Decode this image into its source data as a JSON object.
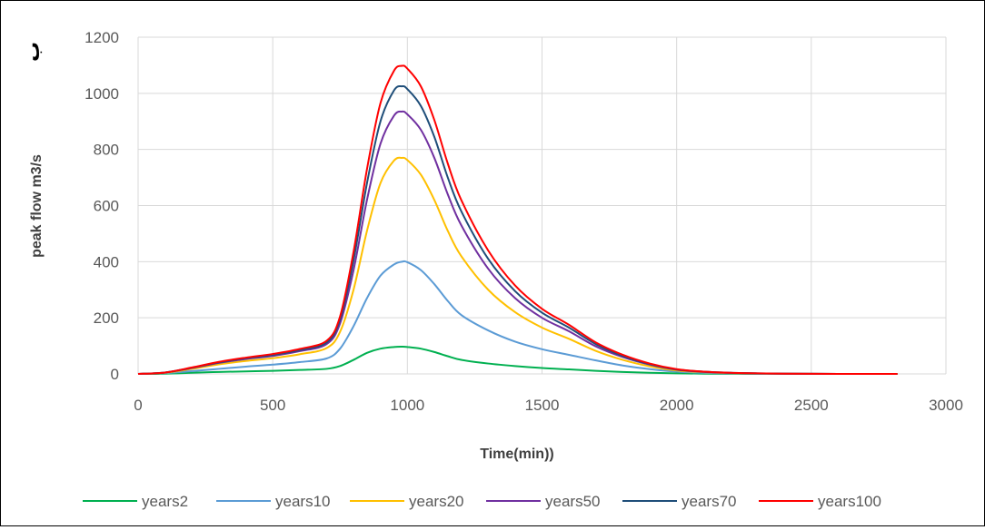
{
  "chart_data": {
    "type": "line",
    "title": "",
    "xlabel": "Time(min))",
    "ylabel": "peak flow m3/s",
    "corner_mark": "ب",
    "xlim": [
      0,
      3000
    ],
    "ylim": [
      0,
      1200
    ],
    "xticks": [
      0,
      500,
      1000,
      1500,
      2000,
      2500,
      3000
    ],
    "yticks": [
      0,
      200,
      400,
      600,
      800,
      1000,
      1200
    ],
    "grid": true,
    "legend_position": "bottom",
    "x": [
      0,
      100,
      200,
      300,
      400,
      500,
      600,
      700,
      750,
      800,
      850,
      900,
      950,
      980,
      1000,
      1050,
      1100,
      1150,
      1200,
      1300,
      1400,
      1500,
      1600,
      1700,
      1800,
      1900,
      2000,
      2100,
      2200,
      2300,
      2400,
      2500,
      2600,
      2700,
      2820
    ],
    "series": [
      {
        "name": "years2",
        "color": "#00b050",
        "values": [
          0,
          1,
          4,
          7,
          9,
          11,
          14,
          18,
          28,
          50,
          75,
          90,
          96,
          97,
          96,
          90,
          78,
          63,
          50,
          37,
          28,
          21,
          16,
          11,
          7,
          4,
          2,
          1,
          0.5,
          0.3,
          0.2,
          0.1,
          0,
          0,
          0
        ]
      },
      {
        "name": "years10",
        "color": "#5b9bd5",
        "values": [
          0,
          3,
          10,
          18,
          26,
          33,
          42,
          55,
          90,
          170,
          270,
          350,
          390,
          400,
          398,
          370,
          320,
          260,
          210,
          155,
          115,
          88,
          68,
          48,
          30,
          17,
          8,
          4,
          2,
          1,
          0.5,
          0.3,
          0.2,
          0.1,
          0
        ]
      },
      {
        "name": "years20",
        "color": "#ffc000",
        "values": [
          0,
          4,
          18,
          34,
          46,
          56,
          70,
          92,
          150,
          300,
          510,
          680,
          760,
          770,
          762,
          710,
          620,
          510,
          420,
          300,
          220,
          165,
          125,
          82,
          50,
          27,
          12,
          6,
          3,
          1.5,
          0.8,
          0.4,
          0.2,
          0.1,
          0
        ]
      },
      {
        "name": "years50",
        "color": "#7030a0",
        "values": [
          0,
          5,
          21,
          39,
          53,
          64,
          81,
          106,
          180,
          370,
          620,
          820,
          920,
          935,
          925,
          870,
          770,
          640,
          530,
          375,
          270,
          200,
          152,
          98,
          60,
          33,
          15,
          7,
          3.5,
          1.8,
          1,
          0.5,
          0.2,
          0.1,
          0
        ]
      },
      {
        "name": "years70",
        "color": "#1f4e79",
        "values": [
          0,
          5,
          22,
          41,
          56,
          68,
          85,
          112,
          195,
          405,
          680,
          900,
          1010,
          1025,
          1015,
          955,
          845,
          700,
          580,
          410,
          295,
          218,
          165,
          106,
          64,
          35,
          16,
          8,
          4,
          2,
          1,
          0.5,
          0.2,
          0.1,
          0
        ]
      },
      {
        "name": "years100",
        "color": "#ff0000",
        "values": [
          0,
          5,
          23,
          43,
          58,
          71,
          89,
          118,
          205,
          435,
          730,
          965,
          1080,
          1098,
          1088,
          1025,
          905,
          750,
          620,
          440,
          315,
          232,
          175,
          112,
          68,
          37,
          17,
          8,
          4,
          2,
          1,
          0.5,
          0.2,
          0.1,
          0
        ]
      }
    ]
  }
}
